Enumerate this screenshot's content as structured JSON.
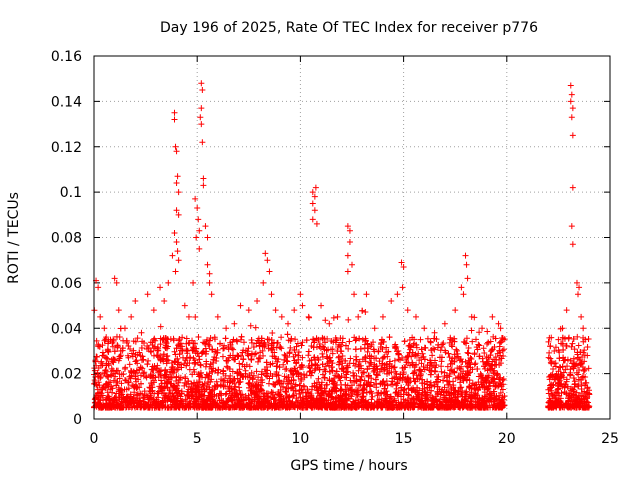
{
  "chart_data": {
    "type": "scatter",
    "title": "Day 196 of 2025, Rate Of TEC Index for receiver p776",
    "xlabel": "GPS time / hours",
    "ylabel": "ROTI / TECUs",
    "xlim": [
      0,
      25
    ],
    "ylim": [
      0,
      0.16
    ],
    "xticks": [
      0,
      5,
      10,
      15,
      20,
      25
    ],
    "xtick_labels": [
      "0",
      "5",
      "10",
      "15",
      "20",
      "25"
    ],
    "yticks": [
      0,
      0.02,
      0.04,
      0.06,
      0.08,
      0.1,
      0.12,
      0.14,
      0.16
    ],
    "ytick_labels": [
      "0",
      "0.02",
      "0.04",
      "0.06",
      "0.08",
      "0.1",
      "0.12",
      "0.14",
      "0.16"
    ],
    "grid": true,
    "marker": "plus",
    "color": "#ff0000",
    "gap_hours": [
      19.9,
      22.0
    ],
    "baseline_band": [
      0.005,
      0.03
    ],
    "points": [
      [
        0.1,
        0.061
      ],
      [
        0.2,
        0.058
      ],
      [
        0.3,
        0.045
      ],
      [
        0.5,
        0.04
      ],
      [
        0.8,
        0.035
      ],
      [
        1.0,
        0.062
      ],
      [
        1.1,
        0.06
      ],
      [
        1.2,
        0.048
      ],
      [
        1.5,
        0.04
      ],
      [
        1.8,
        0.045
      ],
      [
        2.0,
        0.052
      ],
      [
        2.3,
        0.038
      ],
      [
        2.6,
        0.055
      ],
      [
        2.9,
        0.048
      ],
      [
        3.2,
        0.058
      ],
      [
        3.4,
        0.052
      ],
      [
        3.6,
        0.06
      ],
      [
        3.8,
        0.072
      ],
      [
        3.9,
        0.135
      ],
      [
        3.9,
        0.132
      ],
      [
        3.95,
        0.12
      ],
      [
        4.0,
        0.118
      ],
      [
        4.05,
        0.107
      ],
      [
        4.0,
        0.104
      ],
      [
        4.1,
        0.1
      ],
      [
        4.0,
        0.092
      ],
      [
        4.1,
        0.09
      ],
      [
        3.9,
        0.082
      ],
      [
        4.0,
        0.078
      ],
      [
        4.05,
        0.074
      ],
      [
        4.1,
        0.07
      ],
      [
        3.95,
        0.065
      ],
      [
        4.4,
        0.05
      ],
      [
        4.6,
        0.045
      ],
      [
        4.8,
        0.06
      ],
      [
        4.9,
        0.097
      ],
      [
        5.0,
        0.093
      ],
      [
        5.05,
        0.088
      ],
      [
        5.1,
        0.083
      ],
      [
        4.95,
        0.08
      ],
      [
        5.1,
        0.075
      ],
      [
        5.2,
        0.148
      ],
      [
        5.25,
        0.145
      ],
      [
        5.2,
        0.137
      ],
      [
        5.15,
        0.133
      ],
      [
        5.2,
        0.13
      ],
      [
        5.25,
        0.122
      ],
      [
        5.3,
        0.106
      ],
      [
        5.3,
        0.103
      ],
      [
        5.4,
        0.085
      ],
      [
        5.5,
        0.08
      ],
      [
        5.5,
        0.068
      ],
      [
        5.6,
        0.064
      ],
      [
        5.6,
        0.06
      ],
      [
        5.7,
        0.055
      ],
      [
        6.0,
        0.045
      ],
      [
        6.4,
        0.04
      ],
      [
        6.8,
        0.042
      ],
      [
        7.1,
        0.05
      ],
      [
        7.5,
        0.048
      ],
      [
        7.9,
        0.052
      ],
      [
        8.2,
        0.06
      ],
      [
        8.3,
        0.073
      ],
      [
        8.4,
        0.07
      ],
      [
        8.5,
        0.065
      ],
      [
        8.6,
        0.055
      ],
      [
        8.8,
        0.048
      ],
      [
        9.1,
        0.045
      ],
      [
        9.4,
        0.042
      ],
      [
        9.7,
        0.048
      ],
      [
        10.0,
        0.055
      ],
      [
        10.1,
        0.05
      ],
      [
        10.4,
        0.045
      ],
      [
        10.6,
        0.1
      ],
      [
        10.7,
        0.098
      ],
      [
        10.6,
        0.095
      ],
      [
        10.7,
        0.092
      ],
      [
        10.6,
        0.088
      ],
      [
        10.75,
        0.102
      ],
      [
        10.8,
        0.086
      ],
      [
        11.0,
        0.05
      ],
      [
        11.4,
        0.042
      ],
      [
        11.8,
        0.045
      ],
      [
        12.3,
        0.085
      ],
      [
        12.4,
        0.083
      ],
      [
        12.4,
        0.078
      ],
      [
        12.3,
        0.072
      ],
      [
        12.5,
        0.068
      ],
      [
        12.3,
        0.065
      ],
      [
        12.6,
        0.055
      ],
      [
        12.8,
        0.045
      ],
      [
        13.2,
        0.055
      ],
      [
        13.6,
        0.04
      ],
      [
        14.0,
        0.045
      ],
      [
        14.4,
        0.052
      ],
      [
        14.7,
        0.055
      ],
      [
        14.9,
        0.069
      ],
      [
        15.0,
        0.067
      ],
      [
        14.95,
        0.058
      ],
      [
        15.2,
        0.048
      ],
      [
        15.6,
        0.045
      ],
      [
        16.0,
        0.04
      ],
      [
        16.5,
        0.038
      ],
      [
        17.0,
        0.042
      ],
      [
        17.5,
        0.048
      ],
      [
        17.8,
        0.058
      ],
      [
        18.0,
        0.072
      ],
      [
        18.05,
        0.068
      ],
      [
        18.1,
        0.062
      ],
      [
        17.9,
        0.055
      ],
      [
        18.3,
        0.045
      ],
      [
        18.8,
        0.04
      ],
      [
        19.3,
        0.045
      ],
      [
        19.6,
        0.042
      ],
      [
        19.7,
        0.04
      ],
      [
        22.1,
        0.032
      ],
      [
        22.3,
        0.03
      ],
      [
        22.5,
        0.035
      ],
      [
        22.7,
        0.04
      ],
      [
        22.9,
        0.048
      ],
      [
        23.1,
        0.147
      ],
      [
        23.15,
        0.143
      ],
      [
        23.1,
        0.14
      ],
      [
        23.2,
        0.137
      ],
      [
        23.15,
        0.133
      ],
      [
        23.2,
        0.125
      ],
      [
        23.2,
        0.102
      ],
      [
        23.15,
        0.085
      ],
      [
        23.2,
        0.077
      ],
      [
        23.4,
        0.06
      ],
      [
        23.5,
        0.058
      ],
      [
        23.45,
        0.055
      ],
      [
        23.6,
        0.045
      ],
      [
        23.7,
        0.04
      ],
      [
        23.8,
        0.035
      ],
      [
        23.9,
        0.028
      ]
    ]
  }
}
